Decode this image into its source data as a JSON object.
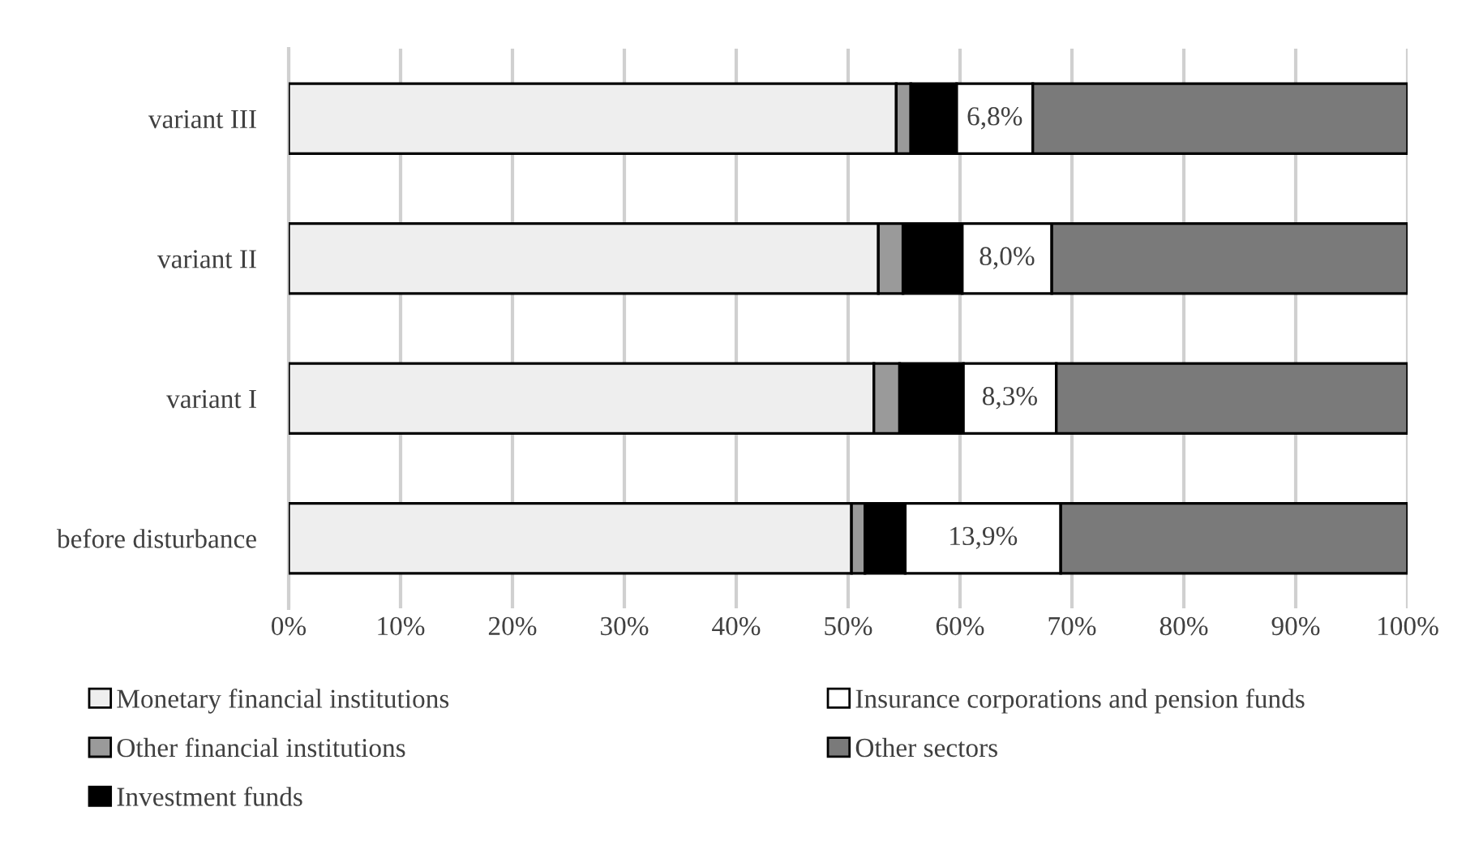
{
  "chart_data": {
    "type": "bar",
    "orientation": "horizontal",
    "stacked": true,
    "categories": [
      "variant III",
      "variant II",
      "variant I",
      "before disturbance"
    ],
    "series": [
      {
        "name": "Monetary financial institutions",
        "color": "#eeeeee",
        "values": [
          54.3,
          52.7,
          52.3,
          50.3
        ]
      },
      {
        "name": "Other financial institutions",
        "color": "#9a9a9a",
        "values": [
          1.3,
          2.2,
          2.3,
          1.2
        ]
      },
      {
        "name": "Investment funds",
        "color": "#000000",
        "values": [
          4.1,
          5.3,
          5.7,
          3.6
        ]
      },
      {
        "name": "Insurance corporations and pension funds",
        "color": "#ffffff",
        "values": [
          6.8,
          8.0,
          8.3,
          13.9
        ],
        "value_labels": [
          "6,8%",
          "8,0%",
          "8,3%",
          "13,9%"
        ]
      },
      {
        "name": "Other sectors",
        "color": "#7a7a7a",
        "values": [
          33.5,
          31.8,
          31.4,
          31.0
        ]
      }
    ],
    "xlim": [
      0,
      100
    ],
    "xticks": [
      {
        "value": 0,
        "label": "0%"
      },
      {
        "value": 10,
        "label": "10%"
      },
      {
        "value": 20,
        "label": "20%"
      },
      {
        "value": 30,
        "label": "30%"
      },
      {
        "value": 40,
        "label": "40%"
      },
      {
        "value": 50,
        "label": "50%"
      },
      {
        "value": 60,
        "label": "60%"
      },
      {
        "value": 70,
        "label": "70%"
      },
      {
        "value": 80,
        "label": "80%"
      },
      {
        "value": 90,
        "label": "90%"
      },
      {
        "value": 100,
        "label": "100%"
      }
    ],
    "grid": "x",
    "legend": "bottom"
  }
}
